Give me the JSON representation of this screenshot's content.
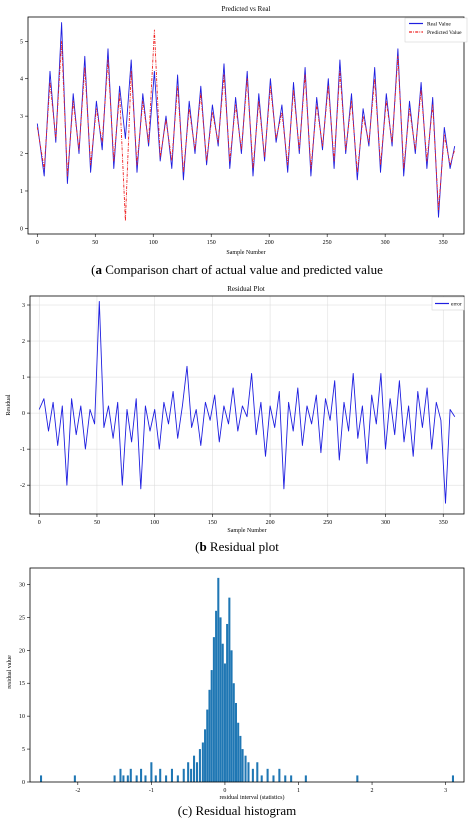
{
  "chart_data": [
    {
      "type": "line",
      "title": "Predicted vs Real",
      "xlabel": "Sample Number",
      "ylabel": "",
      "xlim": [
        -8,
        368
      ],
      "ylim": [
        -0.15,
        5.65
      ],
      "xticks": [
        0,
        50,
        100,
        150,
        200,
        250,
        300,
        350
      ],
      "yticks": [
        0,
        1,
        2,
        3,
        4,
        5
      ],
      "grid": false,
      "legend": "top-right",
      "series": [
        {
          "name": "Real Value",
          "color": "#1f1fe0",
          "style": "solid",
          "x": [
            0,
            6,
            11,
            16,
            21,
            26,
            31,
            36,
            41,
            46,
            51,
            56,
            61,
            66,
            71,
            76,
            81,
            86,
            91,
            96,
            101,
            106,
            111,
            116,
            121,
            126,
            131,
            136,
            141,
            146,
            151,
            156,
            161,
            166,
            171,
            176,
            181,
            186,
            191,
            196,
            201,
            206,
            211,
            216,
            221,
            226,
            231,
            236,
            241,
            246,
            251,
            256,
            261,
            266,
            271,
            276,
            281,
            286,
            291,
            296,
            301,
            306,
            311,
            316,
            321,
            326,
            331,
            336,
            341,
            346,
            351,
            356,
            360
          ],
          "values": [
            2.8,
            1.4,
            4.2,
            2.3,
            5.5,
            1.2,
            3.6,
            2.0,
            4.6,
            1.5,
            3.4,
            2.1,
            4.8,
            1.6,
            3.8,
            2.4,
            4.5,
            1.5,
            3.6,
            2.2,
            4.2,
            1.8,
            3.0,
            1.6,
            4.1,
            1.3,
            3.4,
            2.0,
            3.8,
            1.7,
            3.3,
            2.2,
            4.4,
            1.6,
            3.5,
            2.0,
            4.2,
            1.4,
            3.6,
            1.8,
            4.0,
            2.3,
            3.3,
            1.5,
            3.9,
            2.0,
            4.3,
            1.4,
            3.5,
            2.1,
            4.0,
            1.6,
            4.5,
            2.0,
            3.6,
            1.3,
            3.2,
            2.2,
            4.3,
            1.5,
            3.6,
            2.2,
            4.8,
            1.4,
            3.4,
            2.0,
            3.9,
            1.6,
            3.5,
            0.3,
            2.7,
            1.6,
            2.2
          ]
        },
        {
          "name": "Predicted Value",
          "color": "#ee2020",
          "style": "dashdot",
          "x": [
            0,
            6,
            11,
            16,
            21,
            26,
            31,
            36,
            41,
            46,
            51,
            56,
            61,
            66,
            71,
            76,
            81,
            86,
            91,
            96,
            101,
            106,
            111,
            116,
            121,
            126,
            131,
            136,
            141,
            146,
            151,
            156,
            161,
            166,
            171,
            176,
            181,
            186,
            191,
            196,
            201,
            206,
            211,
            216,
            221,
            226,
            231,
            236,
            241,
            246,
            251,
            256,
            261,
            266,
            271,
            276,
            281,
            286,
            291,
            296,
            301,
            306,
            311,
            316,
            321,
            326,
            331,
            336,
            341,
            346,
            351,
            356,
            360
          ],
          "values": [
            2.7,
            1.6,
            3.9,
            2.4,
            5.0,
            1.4,
            3.4,
            2.1,
            4.3,
            1.7,
            3.2,
            2.3,
            4.5,
            1.8,
            3.6,
            0.2,
            4.2,
            1.7,
            3.4,
            2.3,
            5.3,
            1.9,
            2.9,
            1.8,
            3.8,
            1.5,
            3.2,
            2.1,
            3.6,
            1.8,
            3.1,
            2.3,
            4.1,
            1.8,
            3.3,
            2.1,
            4.0,
            1.6,
            3.4,
            1.9,
            3.8,
            2.4,
            3.1,
            1.7,
            3.7,
            2.1,
            4.1,
            1.6,
            3.3,
            2.2,
            3.8,
            1.8,
            4.2,
            2.1,
            3.4,
            1.5,
            3.0,
            2.3,
            4.0,
            1.7,
            3.4,
            2.3,
            4.6,
            1.6,
            3.2,
            2.1,
            3.7,
            1.8,
            3.3,
            0.5,
            2.5,
            1.7,
            2.1
          ]
        }
      ]
    },
    {
      "type": "line",
      "title": "Residual Plot",
      "xlabel": "Sample Number",
      "ylabel": "Residual",
      "xlim": [
        -8,
        368
      ],
      "ylim": [
        -2.8,
        3.25
      ],
      "xticks": [
        0,
        50,
        100,
        150,
        200,
        250,
        300,
        350
      ],
      "yticks": [
        -2,
        -1,
        0,
        1,
        2,
        3
      ],
      "grid": true,
      "legend": "top-right",
      "series": [
        {
          "name": "error",
          "color": "#1f1fe0",
          "x": [
            0,
            4,
            8,
            12,
            16,
            20,
            24,
            28,
            32,
            36,
            40,
            44,
            48,
            52,
            56,
            60,
            64,
            68,
            72,
            76,
            80,
            84,
            88,
            92,
            96,
            100,
            104,
            108,
            112,
            116,
            120,
            124,
            128,
            132,
            136,
            140,
            144,
            148,
            152,
            156,
            160,
            164,
            168,
            172,
            176,
            180,
            184,
            188,
            192,
            196,
            200,
            204,
            208,
            212,
            216,
            220,
            224,
            228,
            232,
            236,
            240,
            244,
            248,
            252,
            256,
            260,
            264,
            268,
            272,
            276,
            280,
            284,
            288,
            292,
            296,
            300,
            304,
            308,
            312,
            316,
            320,
            324,
            328,
            332,
            336,
            340,
            344,
            348,
            352,
            356,
            360
          ],
          "values": [
            0.1,
            0.4,
            -0.5,
            0.3,
            -0.9,
            0.2,
            -2.0,
            0.4,
            -0.6,
            0.2,
            -1.0,
            0.1,
            -0.3,
            3.1,
            -0.4,
            0.2,
            -0.7,
            0.3,
            -2.0,
            0.1,
            -0.8,
            0.4,
            -2.1,
            0.2,
            -0.5,
            0.1,
            -1.0,
            0.3,
            -0.3,
            0.6,
            -0.7,
            0.2,
            1.3,
            -0.4,
            0.1,
            -0.9,
            0.3,
            -0.2,
            0.5,
            -0.8,
            0.2,
            -0.3,
            0.7,
            -0.5,
            0.2,
            -0.1,
            1.1,
            -0.6,
            0.3,
            -1.2,
            0.2,
            -0.4,
            0.6,
            -2.1,
            0.3,
            -0.5,
            0.7,
            -0.9,
            0.2,
            -0.3,
            0.5,
            -1.1,
            0.4,
            -0.2,
            0.9,
            -1.3,
            0.3,
            -0.5,
            1.1,
            -0.7,
            0.2,
            -1.4,
            0.5,
            -0.3,
            1.1,
            -1.0,
            0.4,
            -0.6,
            0.9,
            -0.8,
            0.2,
            -1.2,
            0.6,
            -0.4,
            0.7,
            -1.0,
            0.3,
            -0.2,
            -2.5,
            0.1,
            -0.1
          ]
        }
      ]
    },
    {
      "type": "bar",
      "title": "",
      "xlabel": "residual interval (statistics)",
      "ylabel": "residual value",
      "xlim": [
        -2.65,
        3.25
      ],
      "ylim": [
        0,
        32.5
      ],
      "xticks": [
        -2,
        -1,
        0,
        1,
        2,
        3
      ],
      "yticks": [
        0,
        5,
        10,
        15,
        20,
        25,
        30
      ],
      "grid": false,
      "bin_width": 0.028,
      "color": "#1f77b4",
      "x": [
        -2.5,
        -2.04,
        -1.5,
        -1.42,
        -1.38,
        -1.32,
        -1.28,
        -1.2,
        -1.14,
        -1.08,
        -1.0,
        -0.94,
        -0.88,
        -0.8,
        -0.72,
        -0.64,
        -0.56,
        -0.5,
        -0.46,
        -0.42,
        -0.38,
        -0.34,
        -0.3,
        -0.27,
        -0.24,
        -0.21,
        -0.18,
        -0.15,
        -0.12,
        -0.09,
        -0.06,
        -0.03,
        0.0,
        0.03,
        0.06,
        0.09,
        0.12,
        0.15,
        0.18,
        0.21,
        0.24,
        0.28,
        0.32,
        0.38,
        0.44,
        0.5,
        0.58,
        0.66,
        0.74,
        0.82,
        0.9,
        1.1,
        1.8,
        3.1
      ],
      "values": [
        1,
        1,
        1,
        2,
        1,
        1,
        2,
        1,
        2,
        1,
        3,
        1,
        2,
        1,
        2,
        1,
        2,
        3,
        2,
        4,
        3,
        5,
        6,
        8,
        11,
        14,
        17,
        22,
        26,
        31,
        25,
        21,
        18,
        24,
        28,
        20,
        15,
        12,
        9,
        7,
        5,
        4,
        3,
        2,
        3,
        1,
        2,
        1,
        2,
        1,
        1,
        1,
        1,
        1
      ]
    }
  ],
  "captions": {
    "a_label": "a",
    "a_text": " Comparison chart of actual value and predicted value",
    "b_label": "b",
    "b_text": " Residual plot",
    "c_text": "(c) Residual histogram"
  }
}
